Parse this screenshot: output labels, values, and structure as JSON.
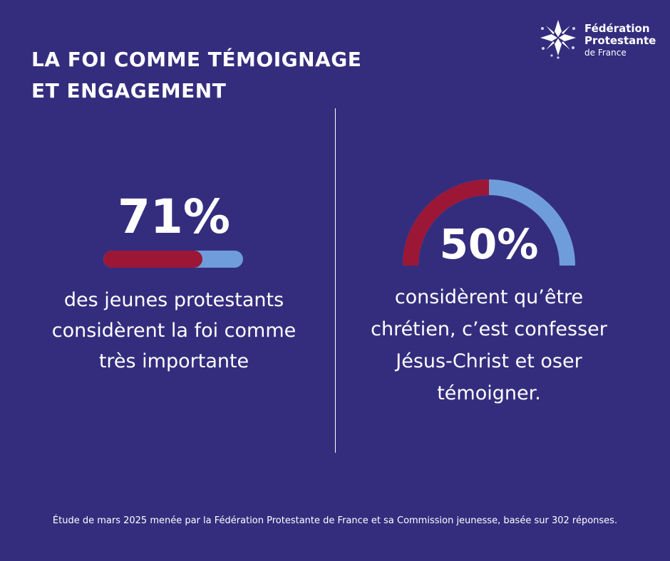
{
  "title": {
    "line1": "LA FOI COMME TÉMOIGNAGE",
    "line2": "ET ENGAGEMENT"
  },
  "logo": {
    "icon": "dove-cross-icon",
    "line1": "Fédération",
    "line2": "Protestante",
    "line3": "de France"
  },
  "colors": {
    "background": "#342d7e",
    "accent_red": "#9b1735",
    "accent_blue": "#6f9ddc",
    "text": "#ffffff"
  },
  "stat_left": {
    "label": "71%",
    "description_lines": [
      "des jeunes protestants",
      "considèrent la foi comme",
      "très importante"
    ]
  },
  "stat_right": {
    "label": "50%",
    "description_lines": [
      "considèrent qu’être",
      "chrétien, c’est confesser",
      "Jésus-Christ et oser",
      "témoigner."
    ]
  },
  "footer": "Étude de mars 2025 menée par la Fédération Protestante de France et sa Commission jeunesse, basée sur 302 réponses.",
  "chart_data": [
    {
      "type": "bar",
      "title": "71%",
      "categories": [
        "des jeunes protestants considèrent la foi comme très importante"
      ],
      "values": [
        71
      ],
      "ylim": [
        0,
        100
      ]
    },
    {
      "type": "pie",
      "title": "50%",
      "categories": [
        "considèrent qu’être chrétien, c’est confesser Jésus-Christ et oser témoigner."
      ],
      "values": [
        50
      ],
      "ylim": [
        0,
        100
      ]
    }
  ]
}
